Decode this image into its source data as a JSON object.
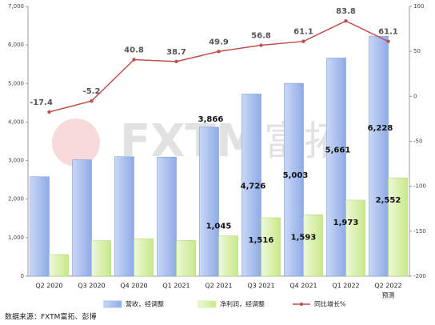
{
  "chart_data": {
    "type": "bar_line",
    "categories": [
      "Q2 2020",
      "Q3 2020",
      "Q4 2020",
      "Q1 2021",
      "Q2 2021",
      "Q3 2021",
      "Q4 2021",
      "Q1 2022",
      "Q2 2022"
    ],
    "category_note": "预测",
    "series": [
      {
        "name": "营收，经调整",
        "color": "#a9c1ef",
        "values": [
          2580,
          3020,
          3100,
          3090,
          3866,
          4726,
          5003,
          5661,
          6228
        ],
        "value_labels": [
          null,
          null,
          null,
          null,
          "3,866",
          "4,726",
          "5,003",
          "5,661",
          "6,228"
        ]
      },
      {
        "name": "净利润，经调整",
        "color": "#d8f0a8",
        "values": [
          560,
          920,
          970,
          930,
          1045,
          1516,
          1593,
          1973,
          2552
        ],
        "value_labels": [
          null,
          null,
          null,
          null,
          "1,045",
          "1,516",
          "1,593",
          "1,973",
          "2,552"
        ]
      },
      {
        "name": "同比增长%",
        "color": "#c0504d",
        "axis": "y2",
        "type": "line",
        "values": [
          -17.4,
          -5.2,
          40.8,
          38.7,
          49.9,
          56.8,
          61.1,
          83.8,
          61.1
        ]
      }
    ],
    "ylim": [
      0,
      7000
    ],
    "yticks": [
      0,
      {
        "value": 1000,
        "label": "1,000"
      },
      {
        "value": 2000,
        "label": "2,000"
      },
      {
        "value": 3000,
        "label": "3,000"
      },
      {
        "value": 4000,
        "label": "4,000"
      },
      {
        "value": 5000,
        "label": "5,000"
      },
      {
        "value": 6000,
        "label": "6,000"
      },
      {
        "value": 7000,
        "label": "7,000"
      }
    ],
    "y2lim": [
      -200,
      100
    ],
    "y2ticks": [
      -200,
      -150,
      -100,
      -50,
      0,
      50,
      100
    ],
    "watermark": "FXTM",
    "watermark_cn": "富拓",
    "source": "数据来源：FXTM富拓、彭博"
  }
}
